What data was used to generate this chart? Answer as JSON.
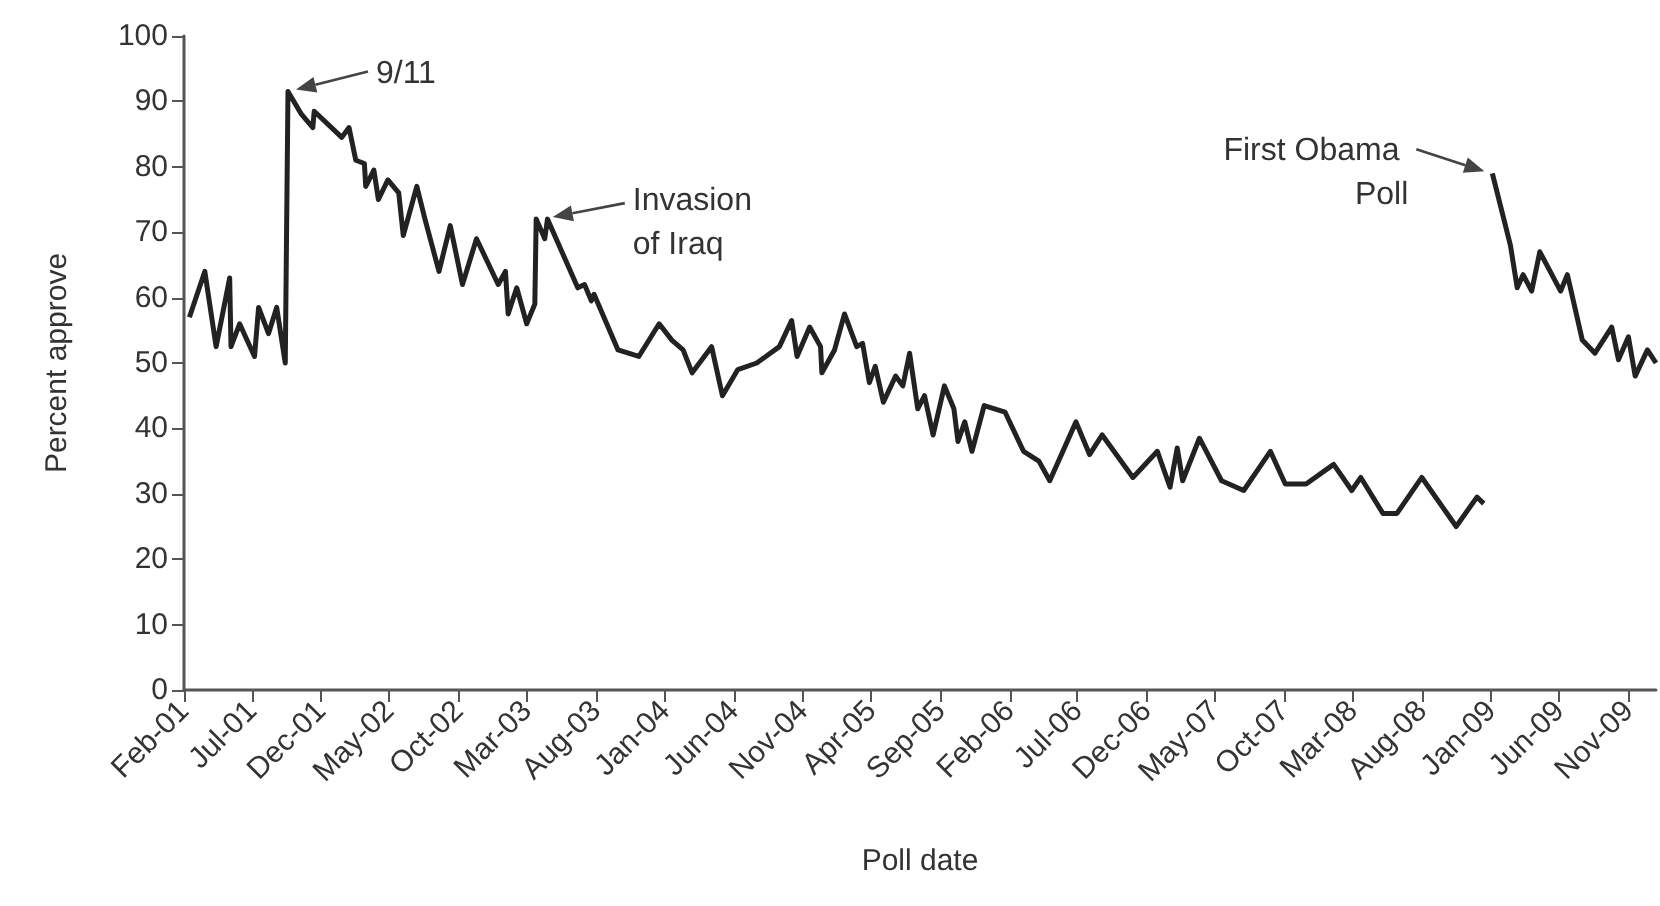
{
  "chart_data": {
    "type": "line",
    "xlabel": "Poll date",
    "ylabel": "Percent approve",
    "x": [
      "2001-02-13",
      "2001-03-19",
      "2001-04-13",
      "2001-05-13",
      "2001-05-16",
      "2001-06-04",
      "2001-07-07",
      "2001-07-16",
      "2001-08-07",
      "2001-08-25",
      "2001-09-13",
      "2001-09-19",
      "2001-10-19",
      "2001-11-13",
      "2001-11-16",
      "2002-01-16",
      "2002-02-01",
      "2002-02-16",
      "2002-03-07",
      "2002-03-10",
      "2002-03-28",
      "2002-04-07",
      "2002-04-28",
      "2002-05-22",
      "2002-06-01",
      "2002-07-01",
      "2002-07-19",
      "2002-08-19",
      "2002-09-13",
      "2002-10-10",
      "2002-11-10",
      "2002-12-28",
      "2003-01-13",
      "2003-01-19",
      "2003-02-07",
      "2003-03-01",
      "2003-03-19",
      "2003-03-22",
      "2003-04-10",
      "2003-04-16",
      "2003-06-22",
      "2003-07-07",
      "2003-07-22",
      "2003-07-28",
      "2003-09-19",
      "2003-11-04",
      "2003-12-19",
      "2004-01-16",
      "2004-02-10",
      "2004-03-01",
      "2004-04-13",
      "2004-05-07",
      "2004-06-10",
      "2004-07-22",
      "2004-09-10",
      "2004-10-07",
      "2004-10-19",
      "2004-11-16",
      "2004-12-10",
      "2004-12-13",
      "2005-01-10",
      "2005-02-01",
      "2005-02-28",
      "2005-03-13",
      "2005-03-28",
      "2005-04-10",
      "2005-04-28",
      "2005-05-25",
      "2005-06-10",
      "2005-06-25",
      "2005-07-13",
      "2005-07-28",
      "2005-08-16",
      "2005-09-10",
      "2005-10-01",
      "2005-10-10",
      "2005-10-25",
      "2005-11-10",
      "2005-12-07",
      "2006-01-22",
      "2006-03-04",
      "2006-04-07",
      "2006-05-01",
      "2006-06-28",
      "2006-07-28",
      "2006-08-25",
      "2006-11-01",
      "2006-12-25",
      "2007-01-22",
      "2007-02-07",
      "2007-02-19",
      "2007-03-28",
      "2007-05-16",
      "2007-07-04",
      "2007-09-01",
      "2007-10-04",
      "2007-11-19",
      "2008-01-19",
      "2008-02-28",
      "2008-03-19",
      "2008-05-07",
      "2008-06-07",
      "2008-08-01",
      "2008-10-16",
      "2008-12-01",
      "2008-12-16",
      "2008-12-25",
      "2009-01-04",
      "2009-02-13",
      "2009-02-28",
      "2009-03-13",
      "2009-04-01",
      "2009-04-19",
      "2009-06-04",
      "2009-06-19",
      "2009-07-22",
      "2009-08-19",
      "2009-09-25",
      "2009-10-10",
      "2009-11-01",
      "2009-11-16",
      "2009-12-13",
      "2010-01-01"
    ],
    "series": [
      {
        "color": "#222222",
        "values": [
          57,
          64,
          52.5,
          63,
          52.5,
          56,
          51,
          58.5,
          54.5,
          58.5,
          50,
          91.5,
          88,
          86,
          88.5,
          84.5,
          86,
          81,
          80.5,
          77,
          79.5,
          75,
          78,
          76,
          69.5,
          77,
          72,
          64,
          71,
          62,
          69,
          62,
          64,
          57.5,
          61.5,
          56,
          59,
          72,
          69,
          72,
          61.5,
          62,
          59.5,
          60.5,
          52,
          51,
          56,
          53.5,
          52,
          48.5,
          52.5,
          45,
          49,
          50,
          52.5,
          56.5,
          51,
          55.5,
          52.5,
          48.5,
          52,
          57.5,
          52.5,
          53,
          47,
          49.5,
          44,
          48,
          46.5,
          51.5,
          43,
          45,
          39,
          46.5,
          43,
          38,
          41,
          36.5,
          43.5,
          42.5,
          36.5,
          35,
          32,
          41,
          36,
          39,
          32.5,
          36.5,
          31,
          37,
          32,
          38.5,
          32,
          30.5,
          36.5,
          31.5,
          31.5,
          34.5,
          30.5,
          32.5,
          27,
          27,
          32.5,
          25,
          29.5,
          28.5,
          null,
          79,
          68,
          61.5,
          63.5,
          61,
          67,
          61,
          63.5,
          53.5,
          51.5,
          55.5,
          50.5,
          54,
          48,
          52,
          50
        ]
      }
    ],
    "xlim": [
      "2001-02-01",
      "2010-01-01"
    ],
    "xticks": [
      {
        "value": "2001-02",
        "label": "Feb-01"
      },
      {
        "value": "2001-07",
        "label": "Jul-01"
      },
      {
        "value": "2001-12",
        "label": "Dec-01"
      },
      {
        "value": "2002-05",
        "label": "May-02"
      },
      {
        "value": "2002-10",
        "label": "Oct-02"
      },
      {
        "value": "2003-03",
        "label": "Mar-03"
      },
      {
        "value": "2003-08",
        "label": "Aug-03"
      },
      {
        "value": "2004-01",
        "label": "Jan-04"
      },
      {
        "value": "2004-06",
        "label": "Jun-04"
      },
      {
        "value": "2004-11",
        "label": "Nov-04"
      },
      {
        "value": "2005-04",
        "label": "Apr-05"
      },
      {
        "value": "2005-09",
        "label": "Sep-05"
      },
      {
        "value": "2006-02",
        "label": "Feb-06"
      },
      {
        "value": "2006-07",
        "label": "Jul-06"
      },
      {
        "value": "2006-12",
        "label": "Dec-06"
      },
      {
        "value": "2007-05",
        "label": "May-07"
      },
      {
        "value": "2007-10",
        "label": "Oct-07"
      },
      {
        "value": "2008-03",
        "label": "Mar-08"
      },
      {
        "value": "2008-08",
        "label": "Aug-08"
      },
      {
        "value": "2009-01",
        "label": "Jan-09"
      },
      {
        "value": "2009-06",
        "label": "Jun-09"
      },
      {
        "value": "2009-11",
        "label": "Nov-09"
      }
    ],
    "ylim": [
      0,
      100
    ],
    "yticks": [
      0,
      10,
      20,
      30,
      40,
      50,
      60,
      70,
      80,
      90,
      100
    ],
    "grid": false,
    "marker": "none",
    "annotations": [
      {
        "text": "9/11",
        "x": "2001-09-19",
        "y": 91.5
      },
      {
        "text": "Invasion of Iraq",
        "x": "2003-04-10",
        "y": 72
      },
      {
        "text": "First Obama Poll",
        "x": "2009-01-04",
        "y": 79
      }
    ]
  }
}
